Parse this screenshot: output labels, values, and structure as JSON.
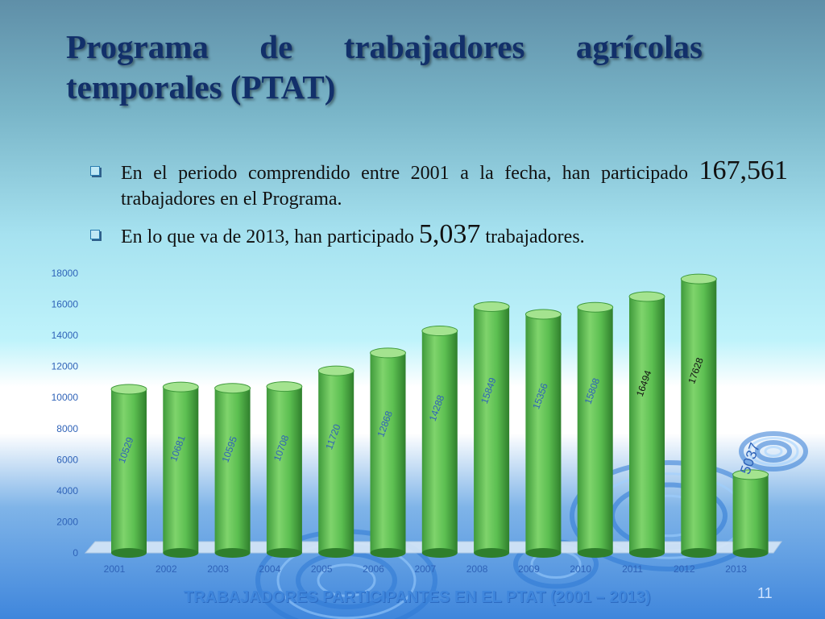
{
  "slide": {
    "title": "Programa de trabajadores agrícolas temporales (PTAT)",
    "bullets": [
      {
        "pre": "En el periodo comprendido entre 2001 a la fecha, han participado ",
        "num": "167,561",
        "post": " trabajadores en el Programa."
      },
      {
        "pre": "En lo que va de 2013, han participado ",
        "num": "5,037",
        "post": " trabajadores."
      }
    ],
    "chart_subtitle": "TRABAJADORES PARTICIPANTES EN EL PTAT (2001 – 2013)",
    "page_number": "11"
  },
  "colors": {
    "bar": "#5bbb4f",
    "bar_top": "#a4e38f",
    "title": "#12306a"
  },
  "chart_data": {
    "type": "bar",
    "categories": [
      "2001",
      "2002",
      "2003",
      "2004",
      "2005",
      "2006",
      "2007",
      "2008",
      "2009",
      "2010",
      "2011",
      "2012",
      "2013"
    ],
    "values": [
      10529,
      10681,
      10595,
      10708,
      11720,
      12868,
      14288,
      15849,
      15356,
      15808,
      16494,
      17628,
      5037
    ],
    "labels": [
      "10529",
      "10681",
      "10595",
      "10708",
      "11720",
      "12868",
      "14288",
      "15849",
      "15356",
      "15808",
      "16494",
      "17628",
      "5037"
    ],
    "yticks": [
      "0",
      "2000",
      "4000",
      "6000",
      "8000",
      "10000",
      "12000",
      "14000",
      "16000",
      "18000"
    ],
    "ylim": [
      0,
      18000
    ],
    "xlabel": "",
    "ylabel": "",
    "title": "TRABAJADORES PARTICIPANTES EN EL PTAT (2001 – 2013)"
  }
}
